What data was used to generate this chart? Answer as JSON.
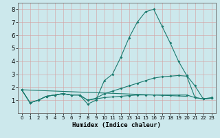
{
  "xlabel": "Humidex (Indice chaleur)",
  "xlim": [
    -0.5,
    23.5
  ],
  "ylim": [
    0,
    8.5
  ],
  "xticks": [
    0,
    1,
    2,
    3,
    4,
    5,
    6,
    7,
    8,
    9,
    10,
    11,
    12,
    13,
    14,
    15,
    16,
    17,
    18,
    19,
    20,
    21,
    22,
    23
  ],
  "yticks": [
    1,
    2,
    3,
    4,
    5,
    6,
    7,
    8
  ],
  "bg_color": "#cce8ec",
  "grid_color_major": "#e8b0b0",
  "grid_color_minor": "#e8d0d0",
  "line_color": "#1a7a6e",
  "series": [
    {
      "x": [
        0,
        1,
        2,
        3,
        4,
        5,
        6,
        7,
        8,
        9,
        10,
        11,
        12,
        13,
        14,
        15,
        16,
        17,
        18,
        19,
        20,
        21,
        22,
        23
      ],
      "y": [
        1.8,
        0.8,
        1.0,
        1.3,
        1.4,
        1.5,
        1.4,
        1.4,
        0.7,
        1.0,
        2.5,
        3.0,
        4.3,
        5.8,
        7.0,
        7.8,
        8.0,
        6.7,
        5.4,
        4.0,
        2.9,
        2.1,
        1.1,
        1.2
      ]
    },
    {
      "x": [
        0,
        1,
        2,
        3,
        4,
        5,
        6,
        7,
        8,
        9,
        10,
        11,
        12,
        13,
        14,
        15,
        16,
        17,
        18,
        19,
        20,
        21,
        22,
        23
      ],
      "y": [
        1.8,
        0.8,
        1.0,
        1.3,
        1.4,
        1.5,
        1.4,
        1.4,
        1.0,
        1.15,
        1.5,
        1.7,
        1.9,
        2.1,
        2.3,
        2.5,
        2.7,
        2.8,
        2.85,
        2.9,
        2.85,
        1.2,
        1.1,
        1.15
      ]
    },
    {
      "x": [
        0,
        1,
        2,
        3,
        4,
        5,
        6,
        7,
        8,
        9,
        10,
        11,
        12,
        13,
        14,
        15,
        16,
        17,
        18,
        19,
        20,
        21,
        22,
        23
      ],
      "y": [
        1.8,
        0.8,
        1.0,
        1.3,
        1.4,
        1.5,
        1.4,
        1.4,
        1.0,
        1.1,
        1.2,
        1.25,
        1.3,
        1.35,
        1.4,
        1.4,
        1.4,
        1.4,
        1.4,
        1.4,
        1.4,
        1.2,
        1.1,
        1.15
      ]
    },
    {
      "x": [
        0,
        20
      ],
      "y": [
        1.8,
        1.3
      ]
    }
  ]
}
